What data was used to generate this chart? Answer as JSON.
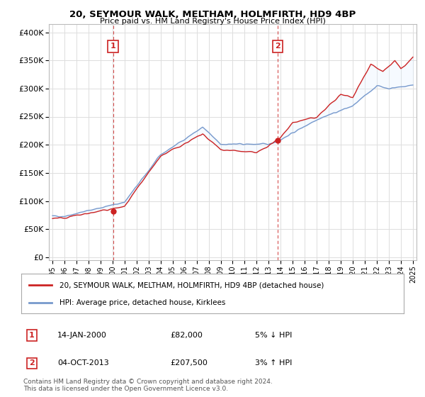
{
  "title": "20, SEYMOUR WALK, MELTHAM, HOLMFIRTH, HD9 4BP",
  "subtitle": "Price paid vs. HM Land Registry's House Price Index (HPI)",
  "ylabel_ticks": [
    "£0",
    "£50K",
    "£100K",
    "£150K",
    "£200K",
    "£250K",
    "£300K",
    "£350K",
    "£400K"
  ],
  "ytick_values": [
    0,
    50000,
    100000,
    150000,
    200000,
    250000,
    300000,
    350000,
    400000
  ],
  "ylim": [
    -5000,
    415000
  ],
  "xlim_start": 1994.7,
  "xlim_end": 2025.3,
  "sale1_x": 2000.04,
  "sale1_y": 82000,
  "sale1_label": "1",
  "sale1_date": "14-JAN-2000",
  "sale1_price": "£82,000",
  "sale1_hpi": "5% ↓ HPI",
  "sale2_x": 2013.75,
  "sale2_y": 207500,
  "sale2_label": "2",
  "sale2_date": "04-OCT-2013",
  "sale2_price": "£207,500",
  "sale2_hpi": "3% ↑ HPI",
  "legend_red": "20, SEYMOUR WALK, MELTHAM, HOLMFIRTH, HD9 4BP (detached house)",
  "legend_blue": "HPI: Average price, detached house, Kirklees",
  "footer": "Contains HM Land Registry data © Crown copyright and database right 2024.\nThis data is licensed under the Open Government Licence v3.0.",
  "hpi_color": "#7799cc",
  "price_color": "#cc2222",
  "dashed_color": "#cc2222",
  "background_color": "#ffffff",
  "grid_color": "#dddddd",
  "fill_color": "#ddeeff"
}
